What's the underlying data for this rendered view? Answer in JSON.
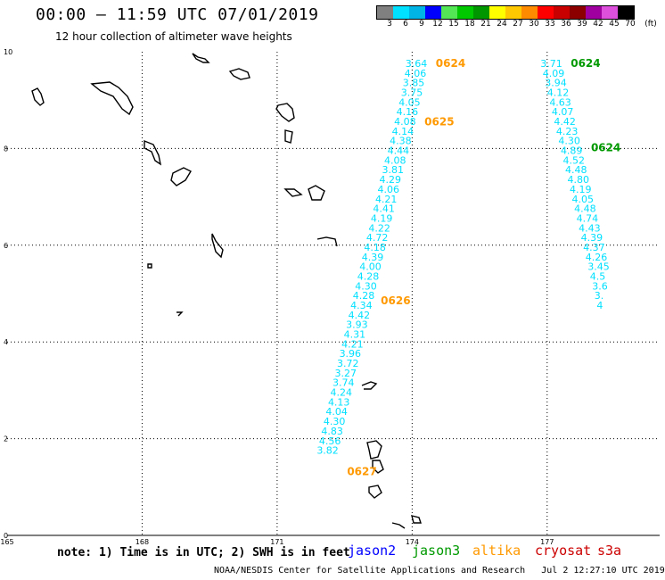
{
  "header": {
    "title": "00:00 – 11:59 UTC 07/01/2019",
    "subtitle": "12 hour collection of altimeter wave heights"
  },
  "legend": {
    "unit_label": "(ft)",
    "items": [
      {
        "label": "3",
        "color": "#808080"
      },
      {
        "label": "6",
        "color": "#00e0ff"
      },
      {
        "label": "9",
        "color": "#00b4e6"
      },
      {
        "label": "12",
        "color": "#0000ff"
      },
      {
        "label": "15",
        "color": "#55e655"
      },
      {
        "label": "18",
        "color": "#00c800"
      },
      {
        "label": "21",
        "color": "#009600"
      },
      {
        "label": "24",
        "color": "#ffff00"
      },
      {
        "label": "27",
        "color": "#ffc800"
      },
      {
        "label": "30",
        "color": "#ff8c00"
      },
      {
        "label": "33",
        "color": "#ff0000"
      },
      {
        "label": "36",
        "color": "#c80000"
      },
      {
        "label": "39",
        "color": "#8c0000"
      },
      {
        "label": "42",
        "color": "#a000a0"
      },
      {
        "label": "45",
        "color": "#dc50dc"
      },
      {
        "label": "70",
        "color": "#000000"
      }
    ]
  },
  "axes": {
    "x_ticks": [
      "165",
      "168",
      "171",
      "174",
      "177"
    ],
    "y_ticks": [
      "0",
      "2",
      "4",
      "6",
      "8",
      "10"
    ]
  },
  "tracks": [
    {
      "time_labels": [
        {
          "text": "0624",
          "lat": 9.76
        },
        {
          "text": "0625",
          "lat": 8.55
        },
        {
          "text": "0626",
          "lat": 4.85
        },
        {
          "text": "0627",
          "lat": 1.32
        }
      ],
      "time_color": "#ff9900",
      "value_color": "#00e0ff",
      "points": [
        {
          "v": "3.64",
          "lon": 173.85,
          "lat": 9.76
        },
        {
          "v": "4.06",
          "lon": 173.83,
          "lat": 9.56
        },
        {
          "v": "3.85",
          "lon": 173.79,
          "lat": 9.36
        },
        {
          "v": "3.75",
          "lon": 173.75,
          "lat": 9.16
        },
        {
          "v": "4.05",
          "lon": 173.7,
          "lat": 8.96
        },
        {
          "v": "4.16",
          "lon": 173.65,
          "lat": 8.76
        },
        {
          "v": "4.08",
          "lon": 173.6,
          "lat": 8.56
        },
        {
          "v": "4.14",
          "lon": 173.55,
          "lat": 8.36
        },
        {
          "v": "4.38",
          "lon": 173.5,
          "lat": 8.16
        },
        {
          "v": "4.44",
          "lon": 173.45,
          "lat": 7.96
        },
        {
          "v": "4.08",
          "lon": 173.38,
          "lat": 7.76
        },
        {
          "v": "3.81",
          "lon": 173.33,
          "lat": 7.56
        },
        {
          "v": "4.29",
          "lon": 173.27,
          "lat": 7.36
        },
        {
          "v": "4.06",
          "lon": 173.23,
          "lat": 7.16
        },
        {
          "v": "4.21",
          "lon": 173.18,
          "lat": 6.96
        },
        {
          "v": "4.41",
          "lon": 173.13,
          "lat": 6.76
        },
        {
          "v": "4.19",
          "lon": 173.08,
          "lat": 6.56
        },
        {
          "v": "4.22",
          "lon": 173.03,
          "lat": 6.36
        },
        {
          "v": "4.72",
          "lon": 172.98,
          "lat": 6.16
        },
        {
          "v": "4.18",
          "lon": 172.93,
          "lat": 5.96
        },
        {
          "v": "4.39",
          "lon": 172.88,
          "lat": 5.76
        },
        {
          "v": "4.00",
          "lon": 172.83,
          "lat": 5.56
        },
        {
          "v": "4.28",
          "lon": 172.78,
          "lat": 5.36
        },
        {
          "v": "4.30",
          "lon": 172.73,
          "lat": 5.16
        },
        {
          "v": "4.28",
          "lon": 172.68,
          "lat": 4.96
        },
        {
          "v": "4.34",
          "lon": 172.63,
          "lat": 4.76
        },
        {
          "v": "4.42",
          "lon": 172.58,
          "lat": 4.56
        },
        {
          "v": "3.93",
          "lon": 172.53,
          "lat": 4.36
        },
        {
          "v": "4.31",
          "lon": 172.48,
          "lat": 4.16
        },
        {
          "v": "4.21",
          "lon": 172.43,
          "lat": 3.96
        },
        {
          "v": "3.96",
          "lon": 172.38,
          "lat": 3.76
        },
        {
          "v": "3.72",
          "lon": 172.33,
          "lat": 3.56
        },
        {
          "v": "3.27",
          "lon": 172.28,
          "lat": 3.36
        },
        {
          "v": "3.74",
          "lon": 172.23,
          "lat": 3.16
        },
        {
          "v": "4.24",
          "lon": 172.18,
          "lat": 2.96
        },
        {
          "v": "4.13",
          "lon": 172.13,
          "lat": 2.76
        },
        {
          "v": "4.04",
          "lon": 172.08,
          "lat": 2.56
        },
        {
          "v": "4.30",
          "lon": 172.03,
          "lat": 2.36
        },
        {
          "v": "4.83",
          "lon": 171.98,
          "lat": 2.16
        },
        {
          "v": "4.56",
          "lon": 171.93,
          "lat": 1.96
        },
        {
          "v": "3.82",
          "lon": 171.88,
          "lat": 1.76
        }
      ]
    },
    {
      "time_labels": [
        {
          "text": "0624",
          "lat": 9.76
        },
        {
          "text": "0624",
          "lat": 8.02
        }
      ],
      "time_color": "#009900",
      "value_color": "#00e0ff",
      "points": [
        {
          "v": "3.71",
          "lon": 176.85,
          "lat": 9.76
        },
        {
          "v": "4.09",
          "lon": 176.9,
          "lat": 9.56
        },
        {
          "v": "3.94",
          "lon": 176.95,
          "lat": 9.36
        },
        {
          "v": "4.12",
          "lon": 177.0,
          "lat": 9.16
        },
        {
          "v": "4.63",
          "lon": 177.05,
          "lat": 8.96
        },
        {
          "v": "4.07",
          "lon": 177.1,
          "lat": 8.76
        },
        {
          "v": "4.42",
          "lon": 177.15,
          "lat": 8.56
        },
        {
          "v": "4.23",
          "lon": 177.2,
          "lat": 8.36
        },
        {
          "v": "4.30",
          "lon": 177.25,
          "lat": 8.16
        },
        {
          "v": "4.89",
          "lon": 177.3,
          "lat": 7.96
        },
        {
          "v": "4.52",
          "lon": 177.35,
          "lat": 7.76
        },
        {
          "v": "4.48",
          "lon": 177.4,
          "lat": 7.56
        },
        {
          "v": "4.80",
          "lon": 177.45,
          "lat": 7.36
        },
        {
          "v": "4.19",
          "lon": 177.5,
          "lat": 7.16
        },
        {
          "v": "4.05",
          "lon": 177.55,
          "lat": 6.96
        },
        {
          "v": "4.48",
          "lon": 177.6,
          "lat": 6.76
        },
        {
          "v": "4.74",
          "lon": 177.65,
          "lat": 6.56
        },
        {
          "v": "4.43",
          "lon": 177.7,
          "lat": 6.36
        },
        {
          "v": "4.39",
          "lon": 177.75,
          "lat": 6.16
        },
        {
          "v": "4.37",
          "lon": 177.8,
          "lat": 5.96
        },
        {
          "v": "4.26",
          "lon": 177.85,
          "lat": 5.76
        },
        {
          "v": "3.45",
          "lon": 177.9,
          "lat": 5.56
        },
        {
          "v": "4.5",
          "lon": 177.95,
          "lat": 5.36
        },
        {
          "v": "3.6",
          "lon": 178.0,
          "lat": 5.16
        },
        {
          "v": "3.",
          "lon": 178.05,
          "lat": 4.96
        },
        {
          "v": "4",
          "lon": 178.1,
          "lat": 4.76
        }
      ]
    }
  ],
  "footer": {
    "note": "note: 1) Time is in UTC; 2) SWH is in feet",
    "missions": [
      {
        "name": "jason2",
        "color": "#0000ff"
      },
      {
        "name": "jason3",
        "color": "#009900"
      },
      {
        "name": "altika",
        "color": "#ff9900"
      },
      {
        "name": "cryosat",
        "color": "#cc0000"
      },
      {
        "name": "s3a",
        "color": "#cc0000"
      }
    ],
    "credit": "NOAA/NESDIS Center for Satellite Applications and Research",
    "timestamp": "Jul  2 12:27:10 UTC 2019"
  }
}
